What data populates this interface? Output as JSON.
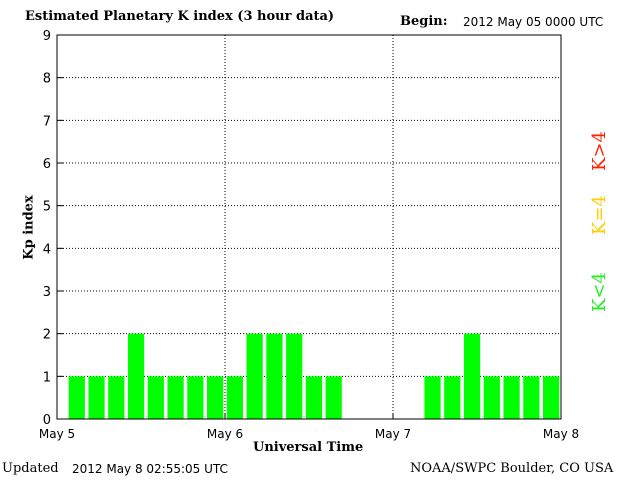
{
  "header": {
    "title": "Estimated Planetary K index (3 hour data)",
    "begin_label": "Begin:",
    "begin_value": "2012 May 05 0000 UTC"
  },
  "footer": {
    "updated_label": "Updated",
    "updated_value": "2012 May  8 02:55:05 UTC",
    "credit": "NOAA/SWPC Boulder, CO USA"
  },
  "legend": {
    "high": {
      "label": "K>4",
      "color": "#ff2200"
    },
    "mid": {
      "label": "K=4",
      "color": "#ffcc00"
    },
    "low": {
      "label": "K<4",
      "color": "#22ee22"
    }
  },
  "chart_data": {
    "type": "bar",
    "title": "Estimated Planetary K index (3 hour data)",
    "xlabel": "Universal Time",
    "ylabel": "Kp index",
    "ylim": [
      0,
      9
    ],
    "yticks": [
      "0",
      "1",
      "2",
      "3",
      "4",
      "5",
      "6",
      "7",
      "8",
      "9"
    ],
    "xticks": [
      "May 5",
      "May 6",
      "May 7",
      "May 8"
    ],
    "bar_color": "#00ff00",
    "grid": true,
    "values": [
      1,
      1,
      1,
      2,
      1,
      1,
      1,
      1,
      1,
      2,
      2,
      2,
      1,
      1,
      null,
      null,
      null,
      null,
      1,
      1,
      2,
      1,
      1,
      1,
      1
    ]
  }
}
